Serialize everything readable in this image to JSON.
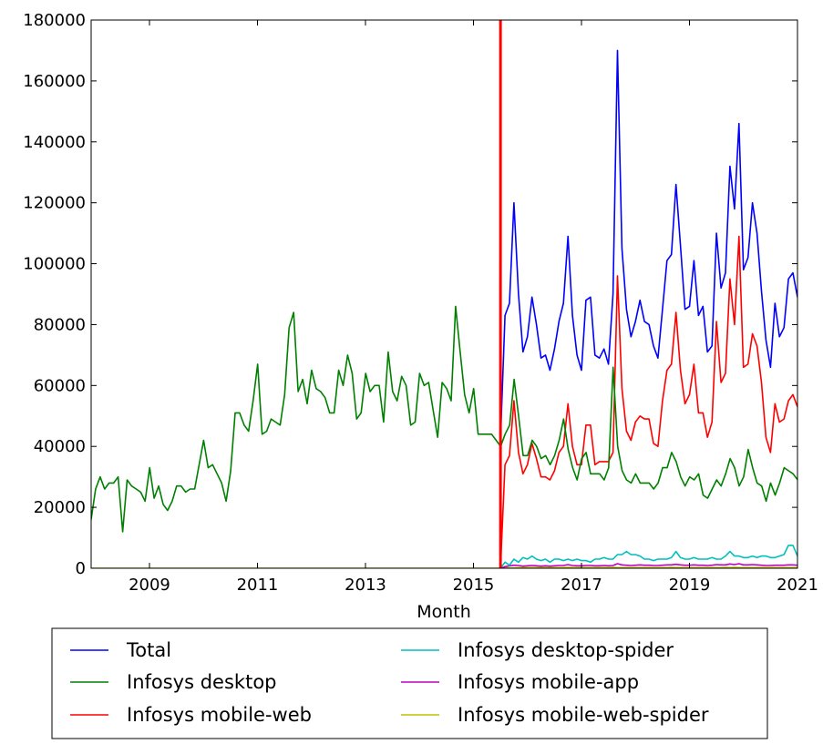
{
  "chart_data": {
    "type": "line",
    "title": "",
    "xlabel": "Month",
    "ylabel": "",
    "xlim": [
      2007.92,
      2021.0
    ],
    "ylim": [
      0,
      180000
    ],
    "x_ticks": [
      2009,
      2011,
      2013,
      2015,
      2017,
      2019,
      2021
    ],
    "x_tick_labels": [
      "2009",
      "2011",
      "2013",
      "2015",
      "2017",
      "2019",
      "2021"
    ],
    "y_ticks": [
      0,
      20000,
      40000,
      60000,
      80000,
      100000,
      120000,
      140000,
      160000,
      180000
    ],
    "y_tick_labels": [
      "0",
      "20000",
      "40000",
      "60000",
      "80000",
      "100000",
      "120000",
      "140000",
      "160000",
      "180000"
    ],
    "vertical_line": {
      "x": 2015.5,
      "color": "#ff0000"
    },
    "grid": false,
    "legend_position": "below",
    "legend_columns": 2,
    "series": [
      {
        "name": "Total",
        "color": "#0000ff",
        "start": 2015.5,
        "step": 0.08333,
        "values": [
          42000,
          83000,
          87000,
          120000,
          90000,
          71000,
          76000,
          89000,
          80000,
          69000,
          70000,
          65000,
          72000,
          81000,
          87000,
          109000,
          83000,
          70000,
          65000,
          88000,
          89000,
          70000,
          69000,
          72000,
          67000,
          90000,
          170000,
          105000,
          85000,
          76000,
          81000,
          88000,
          81000,
          80000,
          73000,
          69000,
          85000,
          101000,
          103000,
          126000,
          106000,
          85000,
          86000,
          101000,
          83000,
          86000,
          71000,
          73000,
          110000,
          92000,
          97000,
          132000,
          118000,
          146000,
          98000,
          102000,
          120000,
          110000,
          91000,
          75000,
          66000,
          87000,
          76000,
          79000,
          95000,
          97000,
          89000,
          88000
        ]
      },
      {
        "name": "Infosys desktop",
        "color": "#008000",
        "start": 2007.92,
        "step": 0.08333,
        "values": [
          16000,
          26000,
          30000,
          26000,
          28000,
          28000,
          30000,
          12000,
          29000,
          27000,
          26000,
          25000,
          22000,
          33000,
          23000,
          27000,
          21000,
          19000,
          22000,
          27000,
          27000,
          25000,
          26000,
          26000,
          34000,
          42000,
          33000,
          34000,
          31000,
          28000,
          22000,
          32000,
          51000,
          51000,
          47000,
          45000,
          55000,
          67000,
          44000,
          45000,
          49000,
          48000,
          47000,
          57000,
          79000,
          84000,
          58000,
          62000,
          54000,
          65000,
          59000,
          58000,
          56000,
          51000,
          51000,
          65000,
          60000,
          70000,
          64000,
          49000,
          51000,
          64000,
          58000,
          60000,
          60000,
          48000,
          71000,
          58000,
          55000,
          63000,
          60000,
          47000,
          48000,
          64000,
          60000,
          61000,
          52000,
          43000,
          61000,
          59000,
          55000,
          86000,
          71000,
          57000,
          51000,
          59000,
          44000,
          44000,
          44000,
          44000,
          42000,
          40000,
          44000,
          47000,
          62000,
          50000,
          37000,
          37000,
          42000,
          40000,
          36000,
          37000,
          34000,
          37000,
          42000,
          49000,
          39000,
          33000,
          29000,
          36000,
          38000,
          31000,
          31000,
          31000,
          29000,
          33000,
          66000,
          40000,
          32000,
          29000,
          28000,
          31000,
          28000,
          28000,
          28000,
          26000,
          28000,
          33000,
          33000,
          38000,
          35000,
          30000,
          27000,
          30000,
          29000,
          31000,
          24000,
          23000,
          26000,
          29000,
          27000,
          31000,
          36000,
          33000,
          27000,
          30000,
          39000,
          33000,
          28000,
          27000,
          22000,
          28000,
          24000,
          28000,
          33000,
          32000,
          31000,
          29000
        ]
      },
      {
        "name": "Infosys mobile-web",
        "color": "#ff0000",
        "start": 2015.5,
        "step": 0.08333,
        "values": [
          0,
          34000,
          37000,
          55000,
          38000,
          31000,
          34000,
          41000,
          36000,
          30000,
          30000,
          29000,
          32000,
          38000,
          40000,
          54000,
          40000,
          34000,
          34000,
          47000,
          47000,
          34000,
          35000,
          35000,
          35000,
          38000,
          96000,
          59000,
          45000,
          42000,
          48000,
          50000,
          49000,
          49000,
          41000,
          40000,
          55000,
          65000,
          67000,
          84000,
          65000,
          54000,
          57000,
          67000,
          51000,
          51000,
          43000,
          48000,
          81000,
          61000,
          64000,
          95000,
          80000,
          109000,
          66000,
          67000,
          77000,
          73000,
          61000,
          43000,
          38000,
          54000,
          48000,
          49000,
          55000,
          57000,
          53000,
          56000
        ]
      },
      {
        "name": "Infosys desktop-spider",
        "color": "#00bfbf",
        "start": 2015.5,
        "step": 0.08333,
        "values": [
          0,
          2000,
          1000,
          3000,
          2000,
          3500,
          3000,
          4000,
          3000,
          2500,
          3000,
          2000,
          3000,
          3000,
          2500,
          3000,
          2500,
          3000,
          2500,
          2500,
          2000,
          3000,
          3000,
          3500,
          3000,
          3000,
          4500,
          4500,
          5500,
          4500,
          4500,
          4000,
          3000,
          3000,
          2500,
          3000,
          3000,
          3000,
          3500,
          5500,
          3500,
          3000,
          3000,
          3500,
          3000,
          3000,
          3000,
          3500,
          3000,
          3000,
          4000,
          5500,
          4000,
          4000,
          3500,
          3500,
          4000,
          3500,
          4000,
          4000,
          3500,
          3500,
          4000,
          4500,
          7500,
          7500,
          4000,
          4000
        ]
      },
      {
        "name": "Infosys mobile-app",
        "color": "#bf00bf",
        "start": 2015.5,
        "step": 0.08333,
        "values": [
          0,
          500,
          800,
          1000,
          900,
          700,
          800,
          900,
          800,
          700,
          800,
          700,
          800,
          900,
          900,
          1200,
          900,
          800,
          800,
          900,
          900,
          800,
          800,
          900,
          800,
          900,
          1500,
          1100,
          1000,
          900,
          1000,
          1100,
          1000,
          1000,
          900,
          900,
          1000,
          1100,
          1100,
          1300,
          1100,
          1000,
          1000,
          1100,
          1000,
          1000,
          900,
          1000,
          1200,
          1100,
          1100,
          1400,
          1200,
          1500,
          1100,
          1100,
          1200,
          1100,
          1000,
          900,
          900,
          1000,
          1000,
          1000,
          1100,
          1100,
          1000,
          1000
        ]
      },
      {
        "name": "Infosys mobile-web-spider",
        "color": "#bfbf00",
        "start": 2007.92,
        "step": 0.08333,
        "values": [
          0,
          0,
          0,
          0,
          0,
          0,
          0,
          0,
          0,
          0,
          0,
          0,
          0,
          0,
          0,
          0,
          0,
          0,
          0,
          0,
          0,
          0,
          0,
          0,
          0,
          0,
          0,
          0,
          0,
          0,
          0,
          0,
          0,
          0,
          0,
          0,
          0,
          0,
          0,
          0,
          0,
          0,
          0,
          0,
          0,
          0,
          0,
          0,
          0,
          0,
          0,
          0,
          0,
          0,
          0,
          0,
          0,
          0,
          0,
          0,
          0,
          0,
          0,
          0,
          0,
          0,
          0,
          0,
          0,
          0,
          0,
          0,
          0,
          0,
          0,
          0,
          0,
          0,
          0,
          0,
          0,
          0,
          0,
          0,
          0,
          0,
          0,
          0,
          0,
          0,
          0,
          0,
          100,
          100,
          100,
          200,
          200,
          200,
          200,
          200,
          200,
          200,
          200,
          200,
          200,
          200,
          300,
          200,
          200,
          200,
          200,
          200,
          200,
          200,
          200,
          200,
          300,
          200,
          200,
          200,
          200,
          200,
          200,
          200,
          200,
          200,
          200,
          200,
          200,
          300,
          200,
          200,
          200,
          200,
          200,
          200,
          200,
          200,
          200,
          200,
          200,
          300,
          200,
          300,
          200,
          200,
          200,
          200,
          200,
          200,
          200,
          200,
          200,
          200,
          200,
          200,
          200,
          200
        ]
      }
    ]
  }
}
